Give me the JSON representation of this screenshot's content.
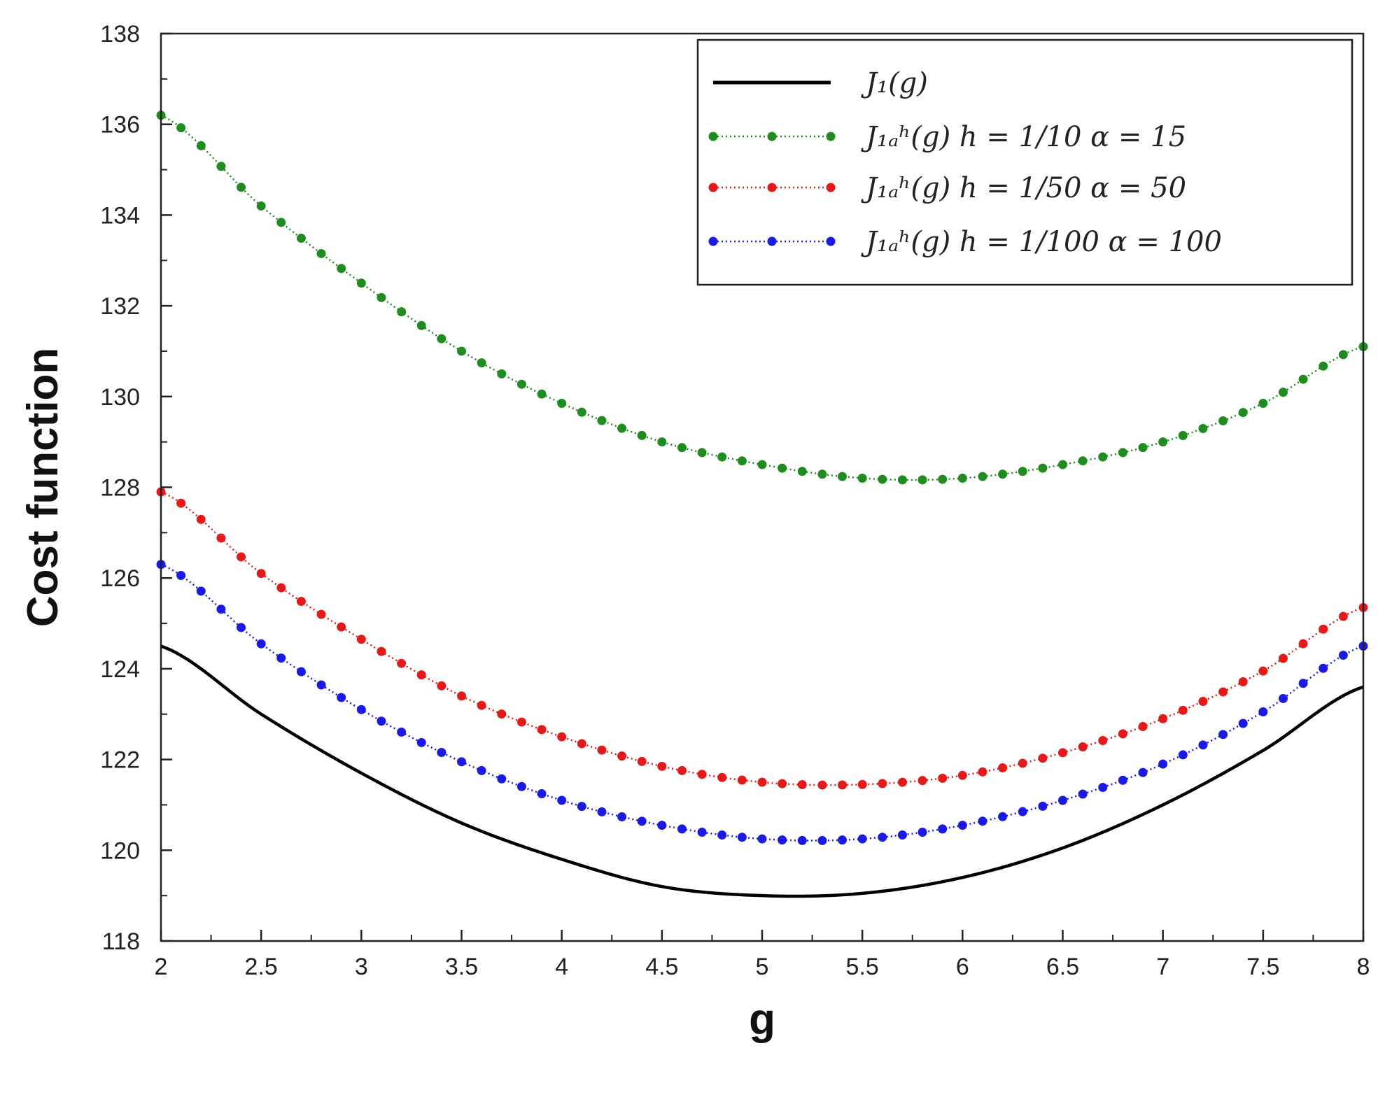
{
  "chart_data": {
    "type": "line",
    "xlabel": "g",
    "ylabel": "Cost function",
    "xlim": [
      2,
      8
    ],
    "ylim": [
      118,
      138
    ],
    "x_ticks": [
      "2",
      "2.5",
      "3",
      "3.5",
      "4",
      "4.5",
      "5",
      "5.5",
      "6",
      "6.5",
      "7",
      "7.5",
      "8"
    ],
    "y_ticks": [
      "118",
      "120",
      "122",
      "124",
      "126",
      "128",
      "130",
      "132",
      "134",
      "136",
      "138"
    ],
    "grid": false,
    "legend_position": "top-right",
    "series": [
      {
        "name": "J₁(g)",
        "color": "#000000",
        "style": "solid",
        "markers": false,
        "x": [
          2.0,
          2.5,
          3.0,
          3.5,
          4.0,
          4.5,
          5.0,
          5.5,
          6.0,
          6.5,
          7.0,
          7.5,
          8.0
        ],
        "y": [
          124.5,
          123.0,
          121.7,
          120.6,
          119.8,
          119.2,
          119.0,
          119.05,
          119.4,
          120.05,
          121.0,
          122.2,
          123.6
        ]
      },
      {
        "name": "J₁ₐʰ(g)  h = 1/10 α = 15",
        "color": "#1e8c1e",
        "style": "dotted",
        "markers": true,
        "x": [
          2.0,
          2.5,
          3.0,
          3.5,
          4.0,
          4.5,
          5.0,
          5.5,
          6.0,
          6.5,
          7.0,
          7.5,
          8.0
        ],
        "y": [
          136.2,
          134.2,
          132.5,
          131.0,
          129.85,
          129.0,
          128.5,
          128.2,
          128.2,
          128.5,
          129.0,
          129.85,
          131.1
        ]
      },
      {
        "name": "J₁ₐʰ(g)  h = 1/50 α = 50",
        "color": "#e41a1a",
        "style": "dotted",
        "markers": true,
        "x": [
          2.0,
          2.5,
          3.0,
          3.5,
          4.0,
          4.5,
          5.0,
          5.5,
          6.0,
          6.5,
          7.0,
          7.5,
          8.0
        ],
        "y": [
          127.9,
          126.1,
          124.65,
          123.4,
          122.5,
          121.85,
          121.5,
          121.45,
          121.65,
          122.15,
          122.9,
          123.95,
          125.35
        ]
      },
      {
        "name": "J₁ₐʰ(g)  h = 1/100 α = 100",
        "color": "#1a1ae4",
        "style": "dotted",
        "markers": true,
        "x": [
          2.0,
          2.5,
          3.0,
          3.5,
          4.0,
          4.5,
          5.0,
          5.5,
          6.0,
          6.5,
          7.0,
          7.5,
          8.0
        ],
        "y": [
          126.3,
          124.55,
          123.1,
          121.95,
          121.1,
          120.55,
          120.25,
          120.25,
          120.55,
          121.1,
          121.9,
          123.05,
          124.5
        ]
      }
    ],
    "legend": [
      {
        "label": "J₁(g)",
        "color": "#000000",
        "markers": false
      },
      {
        "label": "J₁ₐʰ(g)  h = 1/10 α = 15",
        "color": "#1e8c1e",
        "markers": true
      },
      {
        "label": "J₁ₐʰ(g)  h = 1/50 α = 50",
        "color": "#e41a1a",
        "markers": true
      },
      {
        "label": "J₁ₐʰ(g)  h = 1/100 α = 100",
        "color": "#1a1ae4",
        "markers": true
      }
    ]
  }
}
